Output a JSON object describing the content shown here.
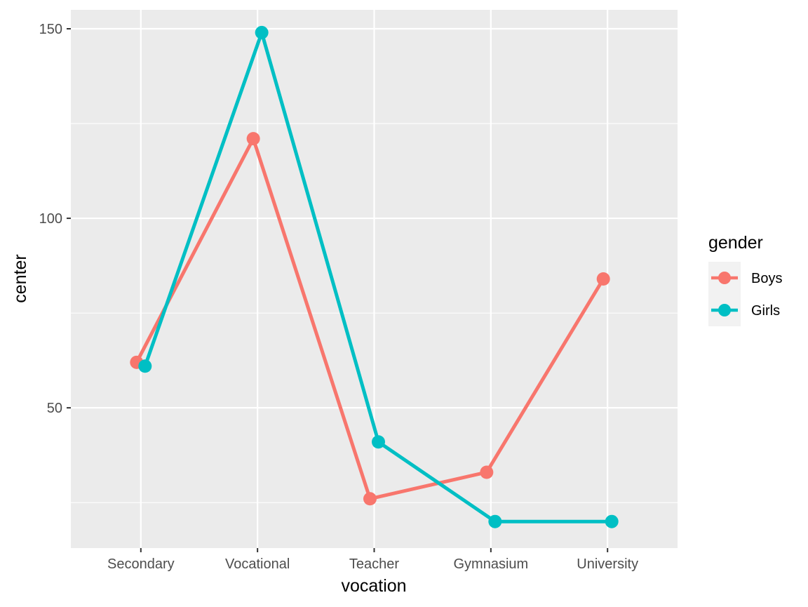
{
  "chart_data": {
    "type": "line",
    "categories": [
      "Secondary",
      "Vocational",
      "Teacher",
      "Gymnasium",
      "University"
    ],
    "series": [
      {
        "name": "Boys",
        "color": "#f8766d",
        "values": [
          62,
          121,
          26,
          33,
          84
        ]
      },
      {
        "name": "Girls",
        "color": "#00bfc4",
        "values": [
          61,
          149,
          41,
          20,
          20
        ]
      }
    ],
    "xlabel": "vocation",
    "ylabel": "center",
    "yticks": [
      50,
      100,
      150
    ],
    "ylim": [
      13,
      155
    ],
    "legend_title": "gender",
    "legend_position": "right",
    "grid": true,
    "panel_background": "#ebebeb",
    "dodge": true
  }
}
